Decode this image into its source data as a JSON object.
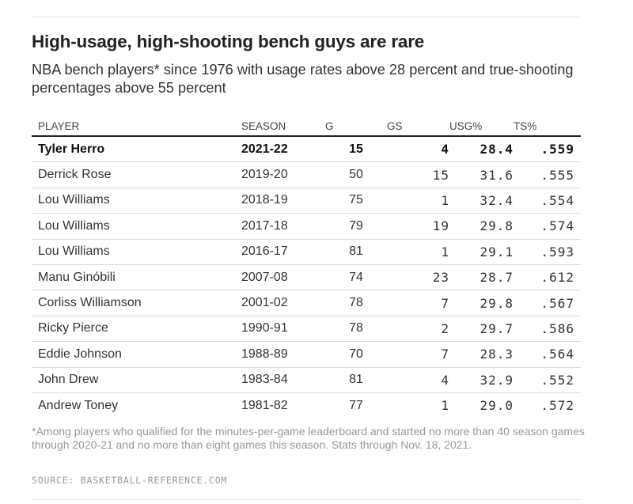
{
  "title": "High-usage, high-shooting bench guys are rare",
  "subtitle": "NBA bench players* since 1976 with usage rates above 28 percent and true-shooting percentages above 55 percent",
  "chart_data": {
    "type": "table",
    "columns": [
      "PLAYER",
      "SEASON",
      "G",
      "GS",
      "USG%",
      "TS%"
    ],
    "highlight_row": 0,
    "rows": [
      [
        "Tyler Herro",
        "2021-22",
        "15",
        "4",
        "28.4",
        ".559"
      ],
      [
        "Derrick Rose",
        "2019-20",
        "50",
        "15",
        "31.6",
        ".555"
      ],
      [
        "Lou Williams",
        "2018-19",
        "75",
        "1",
        "32.4",
        ".554"
      ],
      [
        "Lou Williams",
        "2017-18",
        "79",
        "19",
        "29.8",
        ".574"
      ],
      [
        "Lou Williams",
        "2016-17",
        "81",
        "1",
        "29.1",
        ".593"
      ],
      [
        "Manu Ginóbili",
        "2007-08",
        "74",
        "23",
        "28.7",
        ".612"
      ],
      [
        "Corliss Williamson",
        "2001-02",
        "78",
        "7",
        "29.8",
        ".567"
      ],
      [
        "Ricky Pierce",
        "1990-91",
        "78",
        "2",
        "29.7",
        ".586"
      ],
      [
        "Eddie Johnson",
        "1988-89",
        "70",
        "7",
        "28.3",
        ".564"
      ],
      [
        "John Drew",
        "1983-84",
        "81",
        "4",
        "32.9",
        ".552"
      ],
      [
        "Andrew Toney",
        "1981-82",
        "77",
        "1",
        "29.0",
        ".572"
      ]
    ]
  },
  "footnote": "*Among players who qualified for the minutes-per-game leaderboard and started no more than 40 season games through 2020-21 and no more than eight games this season. Stats through Nov. 18, 2021.",
  "source": "SOURCE: BASKETBALL-REFERENCE.COM"
}
